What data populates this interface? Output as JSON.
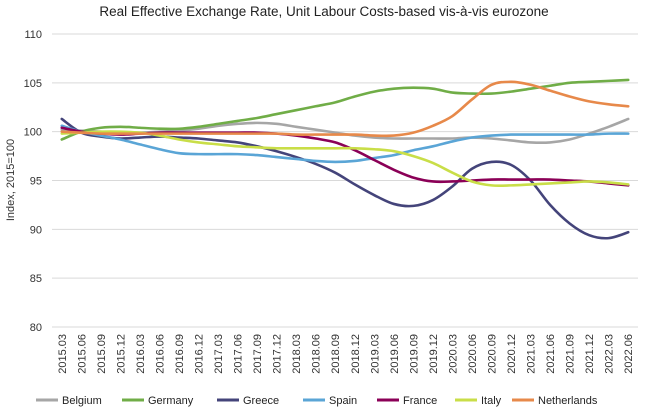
{
  "chart_data": {
    "type": "line",
    "title": "Real Effective Exchange Rate, Unit Labour Costs-based vis-à-vis eurozone",
    "xlabel": "",
    "ylabel": "Index, 2015=100",
    "ylim": [
      80,
      110
    ],
    "yticks": [
      "80",
      "85",
      "90",
      "95",
      "100",
      "105",
      "110"
    ],
    "grid": true,
    "legend_position": "bottom",
    "categories": [
      "2015.03",
      "2015.06",
      "2015.09",
      "2015.12",
      "2016.03",
      "2016.06",
      "2016.09",
      "2016.12",
      "2017.03",
      "2017.06",
      "2017.09",
      "2017.12",
      "2018.03",
      "2018.06",
      "2018.09",
      "2018.12",
      "2019.03",
      "2019.06",
      "2019.09",
      "2019.12",
      "2020.03",
      "2020.06",
      "2020.09",
      "2020.12",
      "2021.03",
      "2021.06",
      "2021.09",
      "2021.12",
      "2022.03",
      "2022.06"
    ],
    "series": [
      {
        "name": "Belgium",
        "color": "#a6a6a6",
        "values": [
          100.2,
          100.1,
          100.0,
          99.9,
          99.9,
          100.0,
          100.1,
          100.3,
          100.6,
          100.8,
          100.9,
          100.8,
          100.5,
          100.2,
          99.9,
          99.6,
          99.4,
          99.3,
          99.3,
          99.3,
          99.3,
          99.4,
          99.3,
          99.1,
          98.9,
          98.9,
          99.2,
          99.8,
          100.5,
          101.3
        ]
      },
      {
        "name": "Germany",
        "color": "#70ad47",
        "values": [
          99.2,
          100.0,
          100.4,
          100.5,
          100.4,
          100.3,
          100.3,
          100.5,
          100.8,
          101.1,
          101.4,
          101.8,
          102.2,
          102.6,
          103.0,
          103.6,
          104.1,
          104.4,
          104.5,
          104.4,
          104.0,
          103.9,
          103.9,
          104.1,
          104.4,
          104.7,
          105.0,
          105.1,
          105.2,
          105.3
        ]
      },
      {
        "name": "Greece",
        "color": "#44447a",
        "values": [
          101.3,
          99.9,
          99.5,
          99.3,
          99.4,
          99.5,
          99.4,
          99.3,
          99.1,
          98.9,
          98.5,
          98.0,
          97.4,
          96.7,
          95.8,
          94.6,
          93.5,
          92.6,
          92.4,
          93.0,
          94.4,
          96.2,
          96.9,
          96.6,
          95.0,
          92.5,
          90.6,
          89.4,
          89.1,
          89.7
        ]
      },
      {
        "name": "Spain",
        "color": "#5aa5d6",
        "values": [
          100.6,
          100.0,
          99.6,
          99.2,
          98.7,
          98.2,
          97.8,
          97.7,
          97.7,
          97.7,
          97.6,
          97.4,
          97.2,
          97.0,
          96.9,
          97.0,
          97.3,
          97.6,
          98.1,
          98.5,
          99.0,
          99.4,
          99.6,
          99.7,
          99.7,
          99.7,
          99.7,
          99.7,
          99.8,
          99.8
        ]
      },
      {
        "name": "France",
        "color": "#8b0057",
        "values": [
          100.4,
          100.0,
          99.8,
          99.7,
          99.8,
          99.9,
          99.9,
          99.9,
          99.9,
          99.9,
          99.9,
          99.8,
          99.6,
          99.3,
          98.9,
          98.1,
          97.1,
          96.1,
          95.3,
          94.9,
          94.9,
          95.0,
          95.1,
          95.1,
          95.1,
          95.1,
          95.0,
          94.9,
          94.7,
          94.5
        ]
      },
      {
        "name": "Italy",
        "color": "#c9de48",
        "values": [
          99.8,
          99.9,
          100.0,
          100.0,
          99.9,
          99.6,
          99.2,
          98.9,
          98.7,
          98.5,
          98.4,
          98.3,
          98.3,
          98.3,
          98.3,
          98.3,
          98.2,
          98.0,
          97.5,
          96.8,
          95.8,
          94.9,
          94.5,
          94.5,
          94.6,
          94.7,
          94.8,
          94.9,
          94.8,
          94.6
        ]
      },
      {
        "name": "Netherlands",
        "color": "#e7894a",
        "values": [
          100.0,
          99.9,
          99.8,
          99.8,
          99.8,
          99.8,
          99.8,
          99.8,
          99.8,
          99.8,
          99.8,
          99.8,
          99.7,
          99.7,
          99.7,
          99.7,
          99.6,
          99.6,
          99.9,
          100.6,
          101.6,
          103.3,
          104.8,
          105.1,
          104.8,
          104.2,
          103.6,
          103.1,
          102.8,
          102.6
        ]
      }
    ]
  }
}
